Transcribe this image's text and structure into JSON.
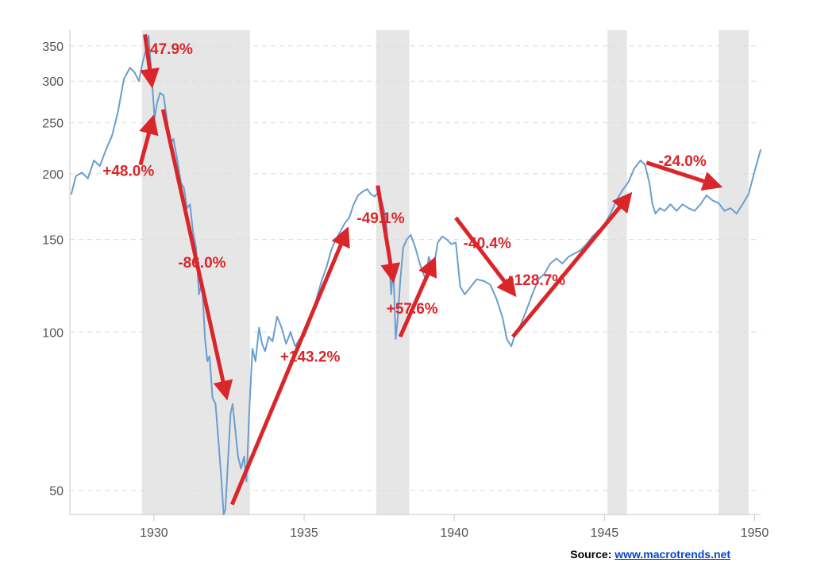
{
  "chart_data": {
    "type": "line",
    "title": "",
    "xlabel": "",
    "ylabel": "",
    "y_scale": "log",
    "xlim": [
      1927.2,
      1950.2
    ],
    "ylim": [
      45,
      375
    ],
    "x_ticks": [
      1930,
      1935,
      1940,
      1945,
      1950
    ],
    "x_tick_labels": [
      "1930",
      "1935",
      "1940",
      "1945",
      "1950"
    ],
    "y_ticks": [
      50,
      100,
      150,
      200,
      250,
      300,
      350
    ],
    "y_tick_labels": [
      "50",
      "100",
      "150",
      "200",
      "250",
      "300",
      "350"
    ],
    "grid": true,
    "legend": "none",
    "recession_shading": [
      [
        1929.6,
        1933.2
      ],
      [
        1937.4,
        1938.5
      ],
      [
        1945.1,
        1945.75
      ],
      [
        1948.8,
        1949.8
      ]
    ],
    "series": [
      {
        "color": "#6a9ecf",
        "points": [
          [
            1927.25,
            183
          ],
          [
            1927.4,
            198
          ],
          [
            1927.6,
            201
          ],
          [
            1927.8,
            196
          ],
          [
            1928.0,
            212
          ],
          [
            1928.2,
            207
          ],
          [
            1928.4,
            222
          ],
          [
            1928.6,
            236
          ],
          [
            1928.8,
            262
          ],
          [
            1929.0,
            303
          ],
          [
            1929.2,
            318
          ],
          [
            1929.35,
            312
          ],
          [
            1929.5,
            300
          ],
          [
            1929.62,
            325
          ],
          [
            1929.75,
            348
          ],
          [
            1929.82,
            366
          ],
          [
            1929.88,
            330
          ],
          [
            1929.95,
            292
          ],
          [
            1930.02,
            255
          ],
          [
            1930.1,
            272
          ],
          [
            1930.2,
            285
          ],
          [
            1930.32,
            282
          ],
          [
            1930.45,
            250
          ],
          [
            1930.55,
            228
          ],
          [
            1930.65,
            233
          ],
          [
            1930.78,
            212
          ],
          [
            1930.9,
            192
          ],
          [
            1931.0,
            188
          ],
          [
            1931.1,
            172
          ],
          [
            1931.2,
            175
          ],
          [
            1931.3,
            155
          ],
          [
            1931.4,
            145
          ],
          [
            1931.5,
            118
          ],
          [
            1931.6,
            125
          ],
          [
            1931.7,
            97
          ],
          [
            1931.78,
            88
          ],
          [
            1931.85,
            90
          ],
          [
            1931.95,
            75
          ],
          [
            1932.05,
            73
          ],
          [
            1932.15,
            62
          ],
          [
            1932.25,
            52
          ],
          [
            1932.32,
            45
          ],
          [
            1932.38,
            46
          ],
          [
            1932.45,
            55
          ],
          [
            1932.55,
            70
          ],
          [
            1932.62,
            73
          ],
          [
            1932.7,
            66
          ],
          [
            1932.8,
            58
          ],
          [
            1932.9,
            55
          ],
          [
            1933.0,
            58
          ],
          [
            1933.08,
            52
          ],
          [
            1933.18,
            72
          ],
          [
            1933.28,
            93
          ],
          [
            1933.38,
            88
          ],
          [
            1933.5,
            102
          ],
          [
            1933.6,
            95
          ],
          [
            1933.7,
            92
          ],
          [
            1933.82,
            98
          ],
          [
            1933.95,
            96
          ],
          [
            1934.1,
            107
          ],
          [
            1934.25,
            102
          ],
          [
            1934.4,
            95
          ],
          [
            1934.55,
            100
          ],
          [
            1934.7,
            94
          ],
          [
            1934.85,
            97
          ],
          [
            1935.0,
            98
          ],
          [
            1935.15,
            103
          ],
          [
            1935.3,
            109
          ],
          [
            1935.45,
            118
          ],
          [
            1935.6,
            126
          ],
          [
            1935.75,
            133
          ],
          [
            1935.9,
            143
          ],
          [
            1936.05,
            150
          ],
          [
            1936.2,
            155
          ],
          [
            1936.35,
            161
          ],
          [
            1936.5,
            165
          ],
          [
            1936.65,
            175
          ],
          [
            1936.8,
            182
          ],
          [
            1936.95,
            185
          ],
          [
            1937.1,
            187
          ],
          [
            1937.22,
            183
          ],
          [
            1937.35,
            181
          ],
          [
            1937.48,
            185
          ],
          [
            1937.6,
            176
          ],
          [
            1937.72,
            165
          ],
          [
            1937.82,
            140
          ],
          [
            1937.9,
            118
          ],
          [
            1937.97,
            133
          ],
          [
            1938.05,
            97
          ],
          [
            1938.12,
            107
          ],
          [
            1938.2,
            125
          ],
          [
            1938.3,
            145
          ],
          [
            1938.42,
            150
          ],
          [
            1938.55,
            153
          ],
          [
            1938.7,
            145
          ],
          [
            1938.85,
            135
          ],
          [
            1938.95,
            130
          ],
          [
            1939.05,
            126
          ],
          [
            1939.15,
            139
          ],
          [
            1939.3,
            132
          ],
          [
            1939.45,
            148
          ],
          [
            1939.6,
            152
          ],
          [
            1939.75,
            150
          ],
          [
            1939.9,
            147
          ],
          [
            1940.05,
            148
          ],
          [
            1940.2,
            122
          ],
          [
            1940.35,
            118
          ],
          [
            1940.55,
            122
          ],
          [
            1940.75,
            126
          ],
          [
            1941.0,
            125
          ],
          [
            1941.2,
            123
          ],
          [
            1941.4,
            116
          ],
          [
            1941.6,
            107
          ],
          [
            1941.75,
            97
          ],
          [
            1941.9,
            94
          ],
          [
            1942.05,
            100
          ],
          [
            1942.2,
            103
          ],
          [
            1942.4,
            110
          ],
          [
            1942.6,
            118
          ],
          [
            1942.8,
            126
          ],
          [
            1943.0,
            129
          ],
          [
            1943.2,
            135
          ],
          [
            1943.4,
            138
          ],
          [
            1943.6,
            135
          ],
          [
            1943.8,
            139
          ],
          [
            1944.0,
            141
          ],
          [
            1944.2,
            143
          ],
          [
            1944.4,
            147
          ],
          [
            1944.6,
            152
          ],
          [
            1944.8,
            156
          ],
          [
            1945.0,
            160
          ],
          [
            1945.2,
            168
          ],
          [
            1945.4,
            178
          ],
          [
            1945.6,
            186
          ],
          [
            1945.8,
            193
          ],
          [
            1946.0,
            205
          ],
          [
            1946.2,
            212
          ],
          [
            1946.35,
            208
          ],
          [
            1946.5,
            192
          ],
          [
            1946.6,
            175
          ],
          [
            1946.7,
            168
          ],
          [
            1946.85,
            172
          ],
          [
            1947.0,
            170
          ],
          [
            1947.2,
            175
          ],
          [
            1947.4,
            170
          ],
          [
            1947.6,
            175
          ],
          [
            1947.8,
            172
          ],
          [
            1948.0,
            170
          ],
          [
            1948.2,
            175
          ],
          [
            1948.4,
            182
          ],
          [
            1948.6,
            178
          ],
          [
            1948.8,
            176
          ],
          [
            1949.0,
            170
          ],
          [
            1949.2,
            172
          ],
          [
            1949.4,
            168
          ],
          [
            1949.6,
            175
          ],
          [
            1949.8,
            183
          ],
          [
            1950.0,
            202
          ],
          [
            1950.2,
            222
          ]
        ]
      }
    ],
    "annotations": [
      {
        "text": "-47.9%",
        "arrow_from": [
          1929.7,
          368
        ],
        "arrow_to": [
          1929.92,
          298
        ],
        "label_at": [
          1930.5,
          346
        ]
      },
      {
        "text": "+48.0%",
        "arrow_from": [
          1929.55,
          208
        ],
        "arrow_to": [
          1929.95,
          253
        ],
        "label_at": [
          1929.15,
          203
        ]
      },
      {
        "text": "-86.0%",
        "arrow_from": [
          1930.3,
          265
        ],
        "arrow_to": [
          1932.4,
          76
        ],
        "label_at": [
          1931.6,
          136
        ]
      },
      {
        "text": "+143.2%",
        "arrow_from": [
          1932.6,
          47
        ],
        "arrow_to": [
          1936.4,
          155
        ],
        "label_at": [
          1935.2,
          90
        ]
      },
      {
        "text": "-49.1%",
        "arrow_from": [
          1937.45,
          190
        ],
        "arrow_to": [
          1937.95,
          127
        ],
        "label_at": [
          1937.55,
          165
        ]
      },
      {
        "text": "+57.6%",
        "arrow_from": [
          1938.2,
          98
        ],
        "arrow_to": [
          1939.3,
          136
        ],
        "label_at": [
          1938.6,
          111
        ]
      },
      {
        "text": "-40.4%",
        "arrow_from": [
          1940.05,
          165
        ],
        "arrow_to": [
          1941.95,
          119
        ],
        "label_at": [
          1941.1,
          148
        ]
      },
      {
        "text": "+128.7%",
        "arrow_from": [
          1941.95,
          98
        ],
        "arrow_to": [
          1945.8,
          181
        ],
        "label_at": [
          1942.7,
          126
        ]
      },
      {
        "text": "-24.0%",
        "arrow_from": [
          1946.4,
          210
        ],
        "arrow_to": [
          1948.75,
          190
        ],
        "label_at": [
          1947.6,
          212
        ]
      }
    ]
  },
  "source": {
    "label": "Source:",
    "link": "www.macrotrends.net"
  },
  "colors": {
    "line": "#6a9ecf",
    "arrow": "#d9262b",
    "shade": "#e6e6e6"
  }
}
